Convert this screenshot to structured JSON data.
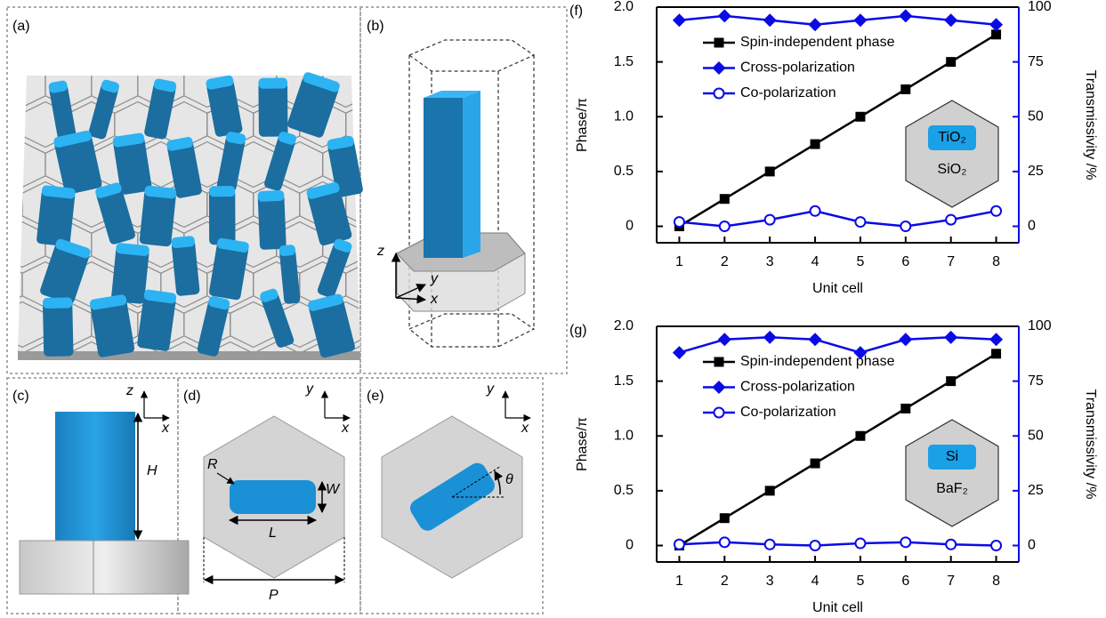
{
  "figure": {
    "labels": [
      "(a)",
      "(b)",
      "(c)",
      "(d)",
      "(e)"
    ],
    "b_axes": [
      "z",
      "y",
      "x"
    ],
    "c_axes": [
      "z",
      "x"
    ],
    "c_dim": "H",
    "d_axes": [
      "y",
      "x"
    ],
    "d_dims": [
      "R",
      "W",
      "L",
      "P"
    ],
    "e_axes": [
      "y",
      "x"
    ],
    "e_angle": "θ"
  },
  "chart_data": [
    {
      "type": "line",
      "panel_label": "(f)",
      "xlabel": "Unit cell",
      "ylabel": "Phase/π",
      "y2label": "Transmissivity /%",
      "x": [
        1,
        2,
        3,
        4,
        5,
        6,
        7,
        8
      ],
      "xlim": [
        0.5,
        8.5
      ],
      "xticks": [
        1,
        2,
        3,
        4,
        5,
        6,
        7,
        8
      ],
      "ylim": [
        -0.15,
        2
      ],
      "yticks": [
        0,
        0.5,
        {
          "value": 1,
          "label": "1.0"
        },
        1.5,
        {
          "value": 2,
          "label": "2.0"
        }
      ],
      "y2lim": [
        -7.5,
        100
      ],
      "y2ticks": [
        0,
        25,
        50,
        75,
        100
      ],
      "y2_color": "#0a0ae6",
      "inset": [
        "TiO₂",
        "SiO₂"
      ],
      "series": [
        {
          "name": "Spin-independent phase",
          "color": "#000000",
          "marker": "square",
          "values": [
            0,
            0.25,
            0.5,
            0.75,
            1.0,
            1.25,
            1.5,
            1.75
          ]
        },
        {
          "name": "Cross-polarization",
          "color": "#0a0ae6",
          "marker": "diamond",
          "axis": "y2",
          "values": [
            94,
            96,
            94,
            92,
            94,
            96,
            94,
            92
          ]
        },
        {
          "name": "Co-polarization",
          "color": "#0a0ae6",
          "marker": "circle-open",
          "axis": "y2",
          "values": [
            2,
            0,
            3,
            7,
            2,
            0,
            3,
            7
          ]
        }
      ]
    },
    {
      "type": "line",
      "panel_label": "(g)",
      "xlabel": "Unit cell",
      "ylabel": "Phase/π",
      "y2label": "Transmissivity /%",
      "x": [
        1,
        2,
        3,
        4,
        5,
        6,
        7,
        8
      ],
      "xlim": [
        0.5,
        8.5
      ],
      "xticks": [
        1,
        2,
        3,
        4,
        5,
        6,
        7,
        8
      ],
      "ylim": [
        -0.15,
        2
      ],
      "yticks": [
        0,
        0.5,
        {
          "value": 1,
          "label": "1.0"
        },
        1.5,
        {
          "value": 2,
          "label": "2.0"
        }
      ],
      "y2lim": [
        -7.5,
        100
      ],
      "y2ticks": [
        0,
        25,
        50,
        75,
        100
      ],
      "y2_color": "#0a0ae6",
      "inset": [
        "Si",
        "BaF₂"
      ],
      "series": [
        {
          "name": "Spin-independent phase",
          "color": "#000000",
          "marker": "square",
          "values": [
            0,
            0.25,
            0.5,
            0.75,
            1.0,
            1.25,
            1.5,
            1.75
          ]
        },
        {
          "name": "Cross-polarization",
          "color": "#0a0ae6",
          "marker": "diamond",
          "axis": "y2",
          "values": [
            88,
            94,
            95,
            94,
            88,
            94,
            95,
            94
          ]
        },
        {
          "name": "Co-polarization",
          "color": "#0a0ae6",
          "marker": "circle-open",
          "axis": "y2",
          "values": [
            0.5,
            1.5,
            0.5,
            0,
            1,
            1.5,
            0.5,
            0
          ]
        }
      ]
    }
  ]
}
